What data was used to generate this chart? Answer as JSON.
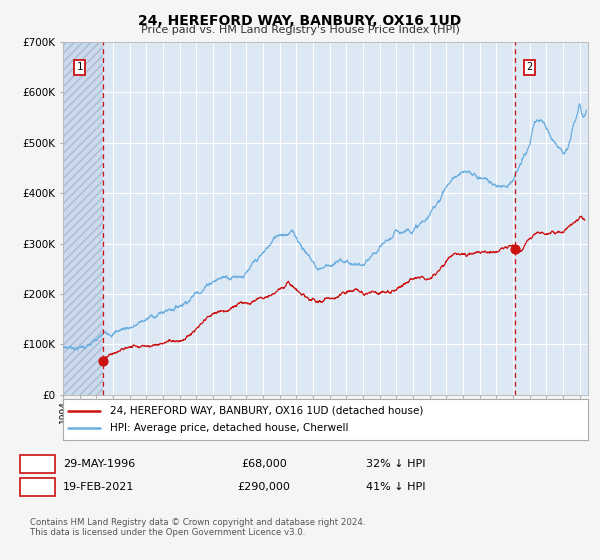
{
  "title": "24, HEREFORD WAY, BANBURY, OX16 1UD",
  "subtitle": "Price paid vs. HM Land Registry's House Price Index (HPI)",
  "ylim": [
    0,
    700000
  ],
  "xlim_start": 1994.0,
  "xlim_end": 2025.5,
  "background_color": "#dde8f5",
  "hpi_color": "#6aaee0",
  "price_color": "#cc1111",
  "marker1_date": 1996.41,
  "marker1_price": 68000,
  "marker1_label": "29-MAY-1996",
  "marker1_value_label": "£68,000",
  "marker1_pct": "32% ↓ HPI",
  "marker2_date": 2021.12,
  "marker2_price": 290000,
  "marker2_label": "19-FEB-2021",
  "marker2_value_label": "£290,000",
  "marker2_pct": "41% ↓ HPI",
  "legend_label1": "24, HEREFORD WAY, BANBURY, OX16 1UD (detached house)",
  "legend_label2": "HPI: Average price, detached house, Cherwell",
  "footnote": "Contains HM Land Registry data © Crown copyright and database right 2024.\nThis data is licensed under the Open Government Licence v3.0.",
  "yticks": [
    0,
    100000,
    200000,
    300000,
    400000,
    500000,
    600000,
    700000
  ],
  "ytick_labels": [
    "£0",
    "£100K",
    "£200K",
    "£300K",
    "£400K",
    "£500K",
    "£600K",
    "£700K"
  ]
}
